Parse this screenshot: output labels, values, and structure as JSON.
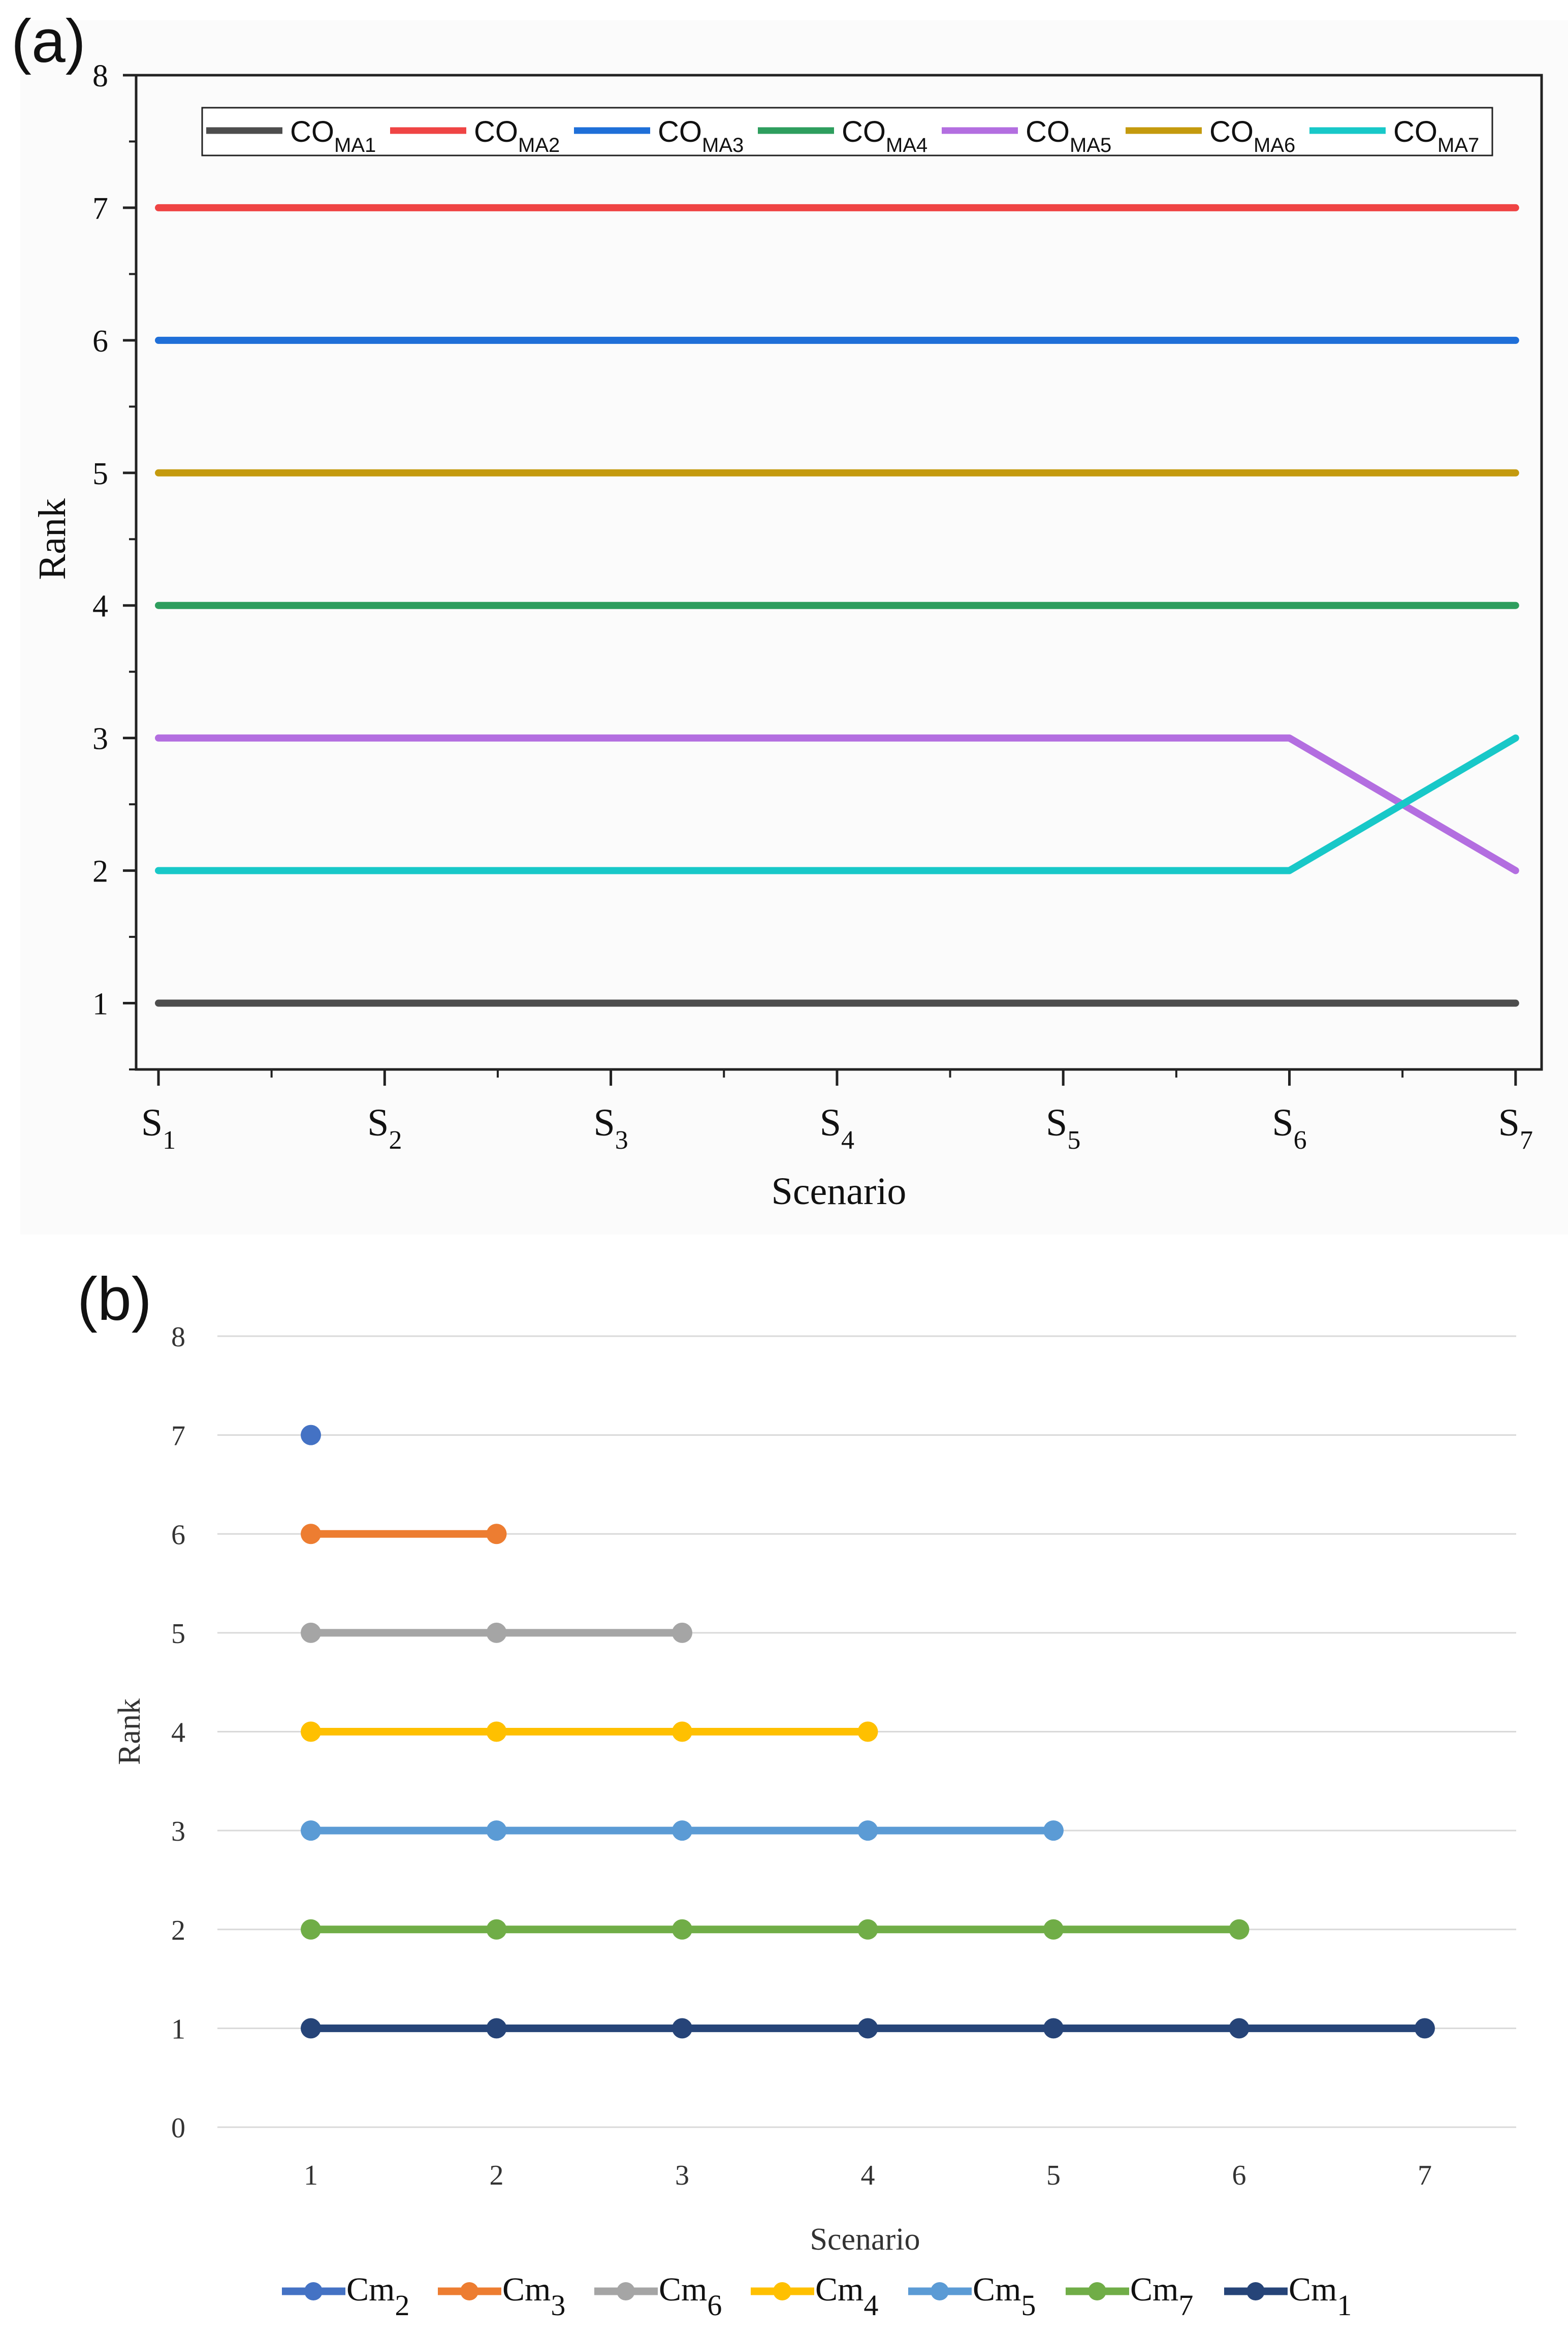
{
  "chart_data": [
    {
      "panel_label": "(a)",
      "type": "line",
      "xlabel": "Scenario",
      "ylabel": "Rank",
      "ylim": [
        0.5,
        8
      ],
      "yticks": [
        "1",
        "2",
        "3",
        "4",
        "5",
        "6",
        "7",
        "8"
      ],
      "categories": [
        {
          "base": "S",
          "sub": "1"
        },
        {
          "base": "S",
          "sub": "2"
        },
        {
          "base": "S",
          "sub": "3"
        },
        {
          "base": "S",
          "sub": "4"
        },
        {
          "base": "S",
          "sub": "5"
        },
        {
          "base": "S",
          "sub": "6"
        },
        {
          "base": "S",
          "sub": "7"
        }
      ],
      "legend_position": "top",
      "series": [
        {
          "base": "CO",
          "sub": "MA1",
          "color": "#4d4d4d",
          "values": [
            1,
            1,
            1,
            1,
            1,
            1,
            1
          ]
        },
        {
          "base": "CO",
          "sub": "MA2",
          "color": "#ef4444",
          "values": [
            7,
            7,
            7,
            7,
            7,
            7,
            7
          ]
        },
        {
          "base": "CO",
          "sub": "MA3",
          "color": "#1f6fd8",
          "values": [
            6,
            6,
            6,
            6,
            6,
            6,
            6
          ]
        },
        {
          "base": "CO",
          "sub": "MA4",
          "color": "#2e9e5e",
          "values": [
            4,
            4,
            4,
            4,
            4,
            4,
            4
          ]
        },
        {
          "base": "CO",
          "sub": "MA5",
          "color": "#b36ee0",
          "values": [
            3,
            3,
            3,
            3,
            3,
            3,
            2
          ]
        },
        {
          "base": "CO",
          "sub": "MA6",
          "color": "#c49a0e",
          "values": [
            5,
            5,
            5,
            5,
            5,
            5,
            5
          ]
        },
        {
          "base": "CO",
          "sub": "MA7",
          "color": "#18c8c8",
          "values": [
            2,
            2,
            2,
            2,
            2,
            2,
            3
          ]
        }
      ]
    },
    {
      "panel_label": "(b)",
      "type": "line",
      "xlabel": "Scenario",
      "ylabel": "Rank",
      "ylim": [
        0,
        8
      ],
      "yticks": [
        "0",
        "1",
        "2",
        "3",
        "4",
        "5",
        "6",
        "7",
        "8"
      ],
      "categories": [
        "1",
        "2",
        "3",
        "4",
        "5",
        "6",
        "7"
      ],
      "grid": true,
      "legend_position": "bottom",
      "series": [
        {
          "base": "Cm",
          "sub": "2",
          "color": "#4472c4",
          "x": [
            1
          ],
          "values": [
            7
          ]
        },
        {
          "base": "Cm",
          "sub": "3",
          "color": "#ed7d31",
          "x": [
            1,
            2
          ],
          "values": [
            6,
            6
          ]
        },
        {
          "base": "Cm",
          "sub": "6",
          "color": "#a5a5a5",
          "x": [
            1,
            2,
            3
          ],
          "values": [
            5,
            5,
            5
          ]
        },
        {
          "base": "Cm",
          "sub": "4",
          "color": "#ffc000",
          "x": [
            1,
            2,
            3,
            4
          ],
          "values": [
            4,
            4,
            4,
            4
          ]
        },
        {
          "base": "Cm",
          "sub": "5",
          "color": "#5b9bd5",
          "x": [
            1,
            2,
            3,
            4,
            5
          ],
          "values": [
            3,
            3,
            3,
            3,
            3
          ]
        },
        {
          "base": "Cm",
          "sub": "7",
          "color": "#70ad47",
          "x": [
            1,
            2,
            3,
            4,
            5,
            6
          ],
          "values": [
            2,
            2,
            2,
            2,
            2,
            2
          ]
        },
        {
          "base": "Cm",
          "sub": "1",
          "color": "#264478",
          "x": [
            1,
            2,
            3,
            4,
            5,
            6,
            7
          ],
          "values": [
            1,
            1,
            1,
            1,
            1,
            1,
            1
          ]
        }
      ]
    }
  ]
}
